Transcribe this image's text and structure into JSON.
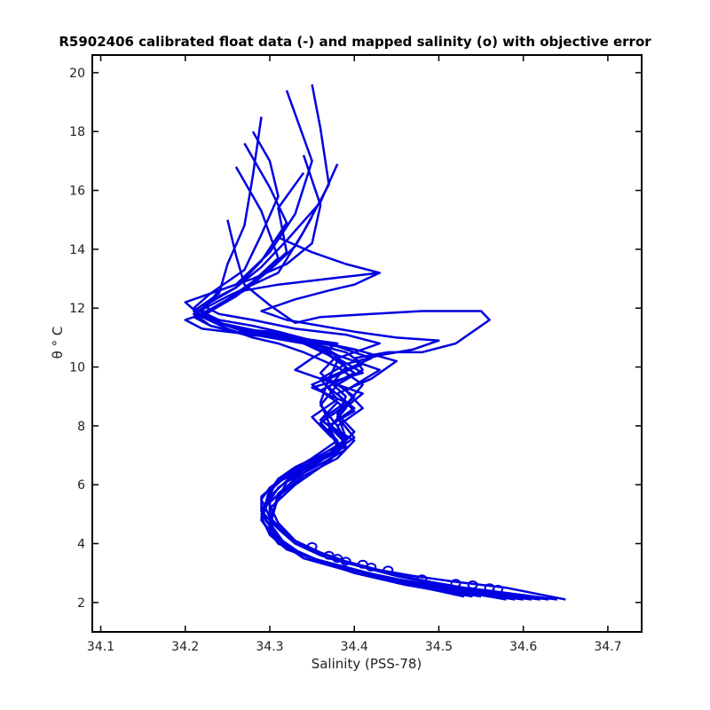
{
  "chart_data": {
    "type": "line",
    "title": "R5902406 calibrated float data (-) and mapped salinity (o) with objective error",
    "xlabel": "Salinity (PSS-78)",
    "ylabel": "θ ° C",
    "xlim": [
      34.09,
      34.74
    ],
    "ylim": [
      1.0,
      20.6
    ],
    "x_ticks": [
      "34.1",
      "34.2",
      "34.3",
      "34.4",
      "34.5",
      "34.6",
      "34.7"
    ],
    "y_ticks": [
      "2",
      "4",
      "6",
      "8",
      "10",
      "12",
      "14",
      "16",
      "18",
      "20"
    ],
    "grid": false,
    "line_color": "#0000e0",
    "series": [
      {
        "x": [
          34.65,
          34.58,
          34.52,
          34.47,
          34.43,
          34.39,
          34.36,
          34.33,
          34.31,
          34.3,
          34.3,
          34.31,
          34.33,
          34.36,
          34.39,
          34.37,
          34.36,
          34.37,
          34.38,
          34.36,
          34.33,
          34.29,
          34.24,
          34.21,
          34.24,
          34.25,
          34.27,
          34.28,
          34.29
        ],
        "y": [
          2.1,
          2.5,
          2.7,
          2.9,
          3.1,
          3.4,
          3.7,
          4.1,
          4.7,
          5.3,
          5.8,
          6.2,
          6.6,
          7.0,
          7.5,
          8.1,
          8.8,
          9.6,
          10.2,
          10.7,
          11.0,
          11.2,
          11.5,
          11.9,
          12.5,
          13.5,
          14.8,
          16.5,
          18.5
        ]
      },
      {
        "x": [
          34.64,
          34.56,
          34.5,
          34.45,
          34.41,
          34.37,
          34.34,
          34.32,
          34.3,
          34.29,
          34.3,
          34.32,
          34.35,
          34.38,
          34.4,
          34.38,
          34.39,
          34.36,
          34.38,
          34.35,
          34.3,
          34.26,
          34.22,
          34.2,
          34.26,
          34.3,
          34.33,
          34.35,
          34.32
        ],
        "y": [
          2.1,
          2.4,
          2.6,
          2.9,
          3.2,
          3.5,
          3.9,
          4.3,
          4.9,
          5.5,
          5.9,
          6.3,
          6.8,
          7.2,
          7.6,
          8.3,
          9.0,
          9.8,
          10.4,
          10.9,
          11.2,
          11.3,
          11.7,
          12.2,
          12.8,
          13.9,
          15.2,
          17.0,
          19.4
        ]
      },
      {
        "x": [
          34.63,
          34.55,
          34.49,
          34.44,
          34.4,
          34.36,
          34.33,
          34.31,
          34.29,
          34.29,
          34.31,
          34.34,
          34.37,
          34.38,
          34.37,
          34.4,
          34.37,
          34.39,
          34.37,
          34.32,
          34.27,
          34.23,
          34.21,
          34.25,
          34.31,
          34.34,
          34.37,
          34.36,
          34.35
        ],
        "y": [
          2.1,
          2.4,
          2.7,
          3.0,
          3.3,
          3.6,
          4.0,
          4.5,
          5.1,
          5.6,
          6.1,
          6.5,
          7.0,
          7.4,
          8.0,
          8.6,
          9.3,
          10.0,
          10.6,
          11.0,
          11.1,
          11.4,
          11.8,
          12.4,
          13.2,
          14.6,
          16.2,
          18.1,
          19.6
        ]
      },
      {
        "x": [
          34.62,
          34.54,
          34.48,
          34.43,
          34.39,
          34.35,
          34.32,
          34.3,
          34.29,
          34.3,
          34.32,
          34.35,
          34.38,
          34.39,
          34.38,
          34.36,
          34.38,
          34.41,
          34.4,
          34.44,
          34.48,
          34.52,
          34.56,
          34.55,
          34.48,
          34.42,
          34.36,
          34.33,
          34.3,
          34.27,
          34.26,
          34.25
        ],
        "y": [
          2.1,
          2.4,
          2.6,
          2.9,
          3.2,
          3.5,
          3.8,
          4.3,
          4.9,
          5.8,
          6.3,
          6.7,
          7.1,
          7.5,
          8.0,
          8.7,
          9.4,
          9.9,
          10.3,
          10.5,
          10.5,
          10.8,
          11.6,
          11.9,
          11.9,
          11.8,
          11.7,
          11.5,
          12.1,
          12.8,
          13.8,
          15.0
        ]
      },
      {
        "x": [
          34.61,
          34.53,
          34.47,
          34.42,
          34.38,
          34.34,
          34.31,
          34.29,
          34.3,
          34.33,
          34.36,
          34.39,
          34.38,
          34.41,
          34.39,
          34.43,
          34.38,
          34.34,
          34.3,
          34.27,
          34.24,
          34.22,
          34.24,
          34.28,
          34.32,
          34.35,
          34.36,
          34.34
        ],
        "y": [
          2.1,
          2.4,
          2.6,
          2.9,
          3.2,
          3.6,
          4.1,
          4.8,
          5.6,
          6.4,
          6.9,
          7.3,
          8.0,
          8.6,
          9.2,
          9.9,
          10.4,
          10.8,
          11.1,
          11.3,
          11.5,
          11.9,
          12.6,
          13.0,
          13.5,
          14.2,
          15.5,
          17.2
        ]
      },
      {
        "x": [
          34.6,
          34.52,
          34.46,
          34.41,
          34.37,
          34.33,
          34.3,
          34.3,
          34.33,
          34.37,
          34.39,
          34.37,
          34.4,
          34.38,
          34.42,
          34.45,
          34.4,
          34.35,
          34.31,
          34.28,
          34.24,
          34.21,
          34.23,
          34.27,
          34.29,
          34.31,
          34.3,
          34.28
        ],
        "y": [
          2.1,
          2.4,
          2.7,
          3.0,
          3.3,
          3.7,
          4.3,
          5.2,
          6.0,
          6.8,
          7.4,
          8.0,
          8.5,
          9.1,
          9.6,
          10.2,
          10.6,
          10.9,
          11.2,
          11.4,
          11.6,
          12.0,
          12.5,
          13.3,
          14.5,
          15.8,
          17.0,
          18.0
        ]
      },
      {
        "x": [
          34.59,
          34.51,
          34.45,
          34.4,
          34.36,
          34.32,
          34.3,
          34.31,
          34.34,
          34.38,
          34.4,
          34.36,
          34.39,
          34.35,
          34.41,
          34.38,
          34.43,
          34.39,
          34.33,
          34.28,
          34.24,
          34.22,
          34.26,
          34.29,
          34.32,
          34.3,
          34.27
        ],
        "y": [
          2.1,
          2.5,
          2.8,
          3.1,
          3.4,
          3.9,
          4.6,
          5.6,
          6.3,
          6.9,
          7.5,
          8.2,
          8.8,
          9.3,
          9.8,
          10.3,
          10.8,
          11.1,
          11.3,
          11.6,
          11.8,
          12.1,
          12.7,
          13.6,
          14.9,
          16.1,
          17.6
        ]
      },
      {
        "x": [
          34.58,
          34.5,
          34.44,
          34.39,
          34.35,
          34.31,
          34.3,
          34.32,
          34.36,
          34.39,
          34.37,
          34.35,
          34.38,
          34.36,
          34.39,
          34.43,
          34.47,
          34.5,
          34.45,
          34.4,
          34.36,
          34.32,
          34.29,
          34.33,
          34.37,
          34.4,
          34.43,
          34.39,
          34.35,
          34.31
        ],
        "y": [
          2.1,
          2.5,
          2.8,
          3.2,
          3.5,
          4.0,
          4.9,
          6.1,
          6.7,
          7.2,
          7.7,
          8.3,
          8.9,
          9.6,
          10.1,
          10.4,
          10.6,
          10.9,
          11.0,
          11.2,
          11.4,
          11.6,
          11.9,
          12.3,
          12.6,
          12.8,
          13.2,
          13.5,
          13.9,
          14.4
        ]
      },
      {
        "x": [
          34.57,
          34.49,
          34.43,
          34.38,
          34.34,
          34.31,
          34.29,
          34.31,
          34.34,
          34.37,
          34.39,
          34.38,
          34.41,
          34.37,
          34.33,
          34.35,
          34.38,
          34.33,
          34.28,
          34.22,
          34.2,
          34.23,
          34.26,
          34.29,
          34.32,
          34.31,
          34.34
        ],
        "y": [
          2.2,
          2.5,
          2.9,
          3.2,
          3.6,
          4.2,
          5.0,
          5.9,
          6.5,
          7.0,
          7.6,
          8.4,
          9.1,
          9.5,
          9.9,
          10.3,
          10.8,
          11.0,
          11.1,
          11.3,
          11.6,
          11.9,
          12.4,
          13.1,
          13.9,
          15.4,
          16.6
        ]
      },
      {
        "x": [
          34.56,
          34.48,
          34.42,
          34.37,
          34.33,
          34.3,
          34.3,
          34.33,
          34.36,
          34.38,
          34.37,
          34.39,
          34.36,
          34.4,
          34.37,
          34.34,
          34.3,
          34.26,
          34.23,
          34.21,
          34.24,
          34.27,
          34.3,
          34.33,
          34.35
        ],
        "y": [
          2.2,
          2.6,
          2.9,
          3.3,
          3.7,
          4.4,
          5.4,
          6.2,
          6.8,
          7.3,
          7.9,
          8.6,
          9.2,
          9.8,
          10.4,
          10.8,
          11.0,
          11.2,
          11.4,
          11.7,
          12.1,
          12.6,
          13.3,
          14.1,
          15.1
        ]
      },
      {
        "x": [
          34.55,
          34.47,
          34.41,
          34.36,
          34.32,
          34.3,
          34.31,
          34.34,
          34.37,
          34.39,
          34.36,
          34.38,
          34.35,
          34.39,
          34.42,
          34.38,
          34.34,
          34.29,
          34.25,
          34.22,
          34.25,
          34.28,
          34.31,
          34.29,
          34.26
        ],
        "y": [
          2.2,
          2.6,
          3.0,
          3.4,
          3.9,
          4.7,
          5.7,
          6.4,
          7.0,
          7.6,
          8.2,
          8.8,
          9.4,
          9.9,
          10.3,
          10.7,
          10.9,
          11.1,
          11.4,
          11.8,
          12.3,
          12.9,
          13.7,
          15.3,
          16.8
        ]
      },
      {
        "x": [
          34.54,
          34.46,
          34.4,
          34.35,
          34.31,
          34.29,
          34.3,
          34.33,
          34.38,
          34.4,
          34.38,
          34.4,
          34.37,
          34.41,
          34.39,
          34.35,
          34.31,
          34.27,
          34.24,
          34.21,
          34.23,
          34.26,
          34.29,
          34.32,
          34.36,
          34.38
        ],
        "y": [
          2.2,
          2.6,
          3.0,
          3.5,
          4.0,
          4.8,
          5.9,
          6.5,
          7.2,
          7.8,
          8.4,
          9.0,
          9.6,
          10.1,
          10.5,
          10.8,
          11.0,
          11.2,
          11.5,
          11.8,
          12.2,
          12.7,
          13.4,
          14.3,
          15.6,
          16.9
        ]
      },
      {
        "x": [
          34.53,
          34.45,
          34.39,
          34.34,
          34.31,
          34.29,
          34.31,
          34.35,
          34.38,
          34.36,
          34.39,
          34.41,
          34.38,
          34.34,
          34.31,
          34.28,
          34.25,
          34.22,
          34.24,
          34.27,
          34.31,
          34.34,
          34.37,
          34.4,
          34.43
        ],
        "y": [
          2.2,
          2.7,
          3.1,
          3.5,
          4.1,
          5.1,
          6.2,
          6.9,
          7.5,
          8.1,
          8.7,
          9.4,
          10.0,
          10.5,
          10.8,
          11.0,
          11.3,
          11.7,
          12.1,
          12.6,
          12.8,
          12.9,
          13.0,
          13.1,
          13.2
        ]
      }
    ],
    "markers": {
      "x": [
        34.35,
        34.37,
        34.38,
        34.39,
        34.41,
        34.42,
        34.44,
        34.48,
        34.52,
        34.54,
        34.56,
        34.57
      ],
      "y": [
        3.9,
        3.6,
        3.5,
        3.4,
        3.3,
        3.2,
        3.1,
        2.8,
        2.65,
        2.6,
        2.5,
        2.45
      ]
    }
  }
}
